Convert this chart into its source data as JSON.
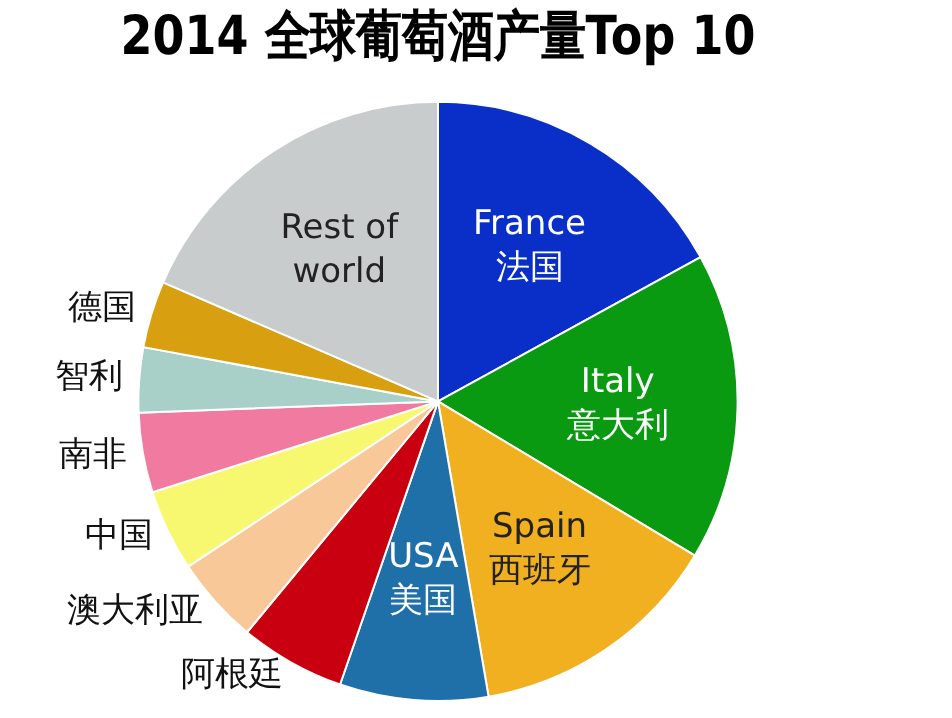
{
  "chart_data": {
    "type": "pie",
    "title": "2014 全球葡萄酒产量Top 10",
    "categories": [
      "France\n法国",
      "Italy\n意大利",
      "Spain\n西班牙",
      "USA\n美国",
      "阿根廷",
      "澳大利亚",
      "中国",
      "南非",
      "智利",
      "德国",
      "Rest of\nworld"
    ],
    "values": [
      17,
      16.6,
      13.7,
      8,
      5.7,
      4.7,
      4.4,
      4.3,
      3.5,
      3.6,
      18.5
    ],
    "colors": [
      "#0a2fc8",
      "#0a9a12",
      "#f0b020",
      "#1f6fa8",
      "#c80010",
      "#f8c898",
      "#f8f870",
      "#f07aa0",
      "#a8d0c8",
      "#d8a010",
      "#c8cccc"
    ],
    "legend": false
  }
}
